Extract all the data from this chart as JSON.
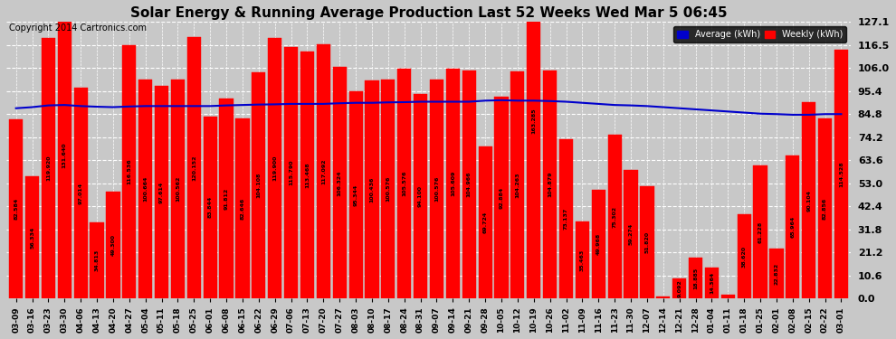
{
  "title": "Solar Energy & Running Average Production Last 52 Weeks Wed Mar 5 06:45",
  "copyright": "Copyright 2014 Cartronics.com",
  "bar_color": "#ff0000",
  "bar_edge_color": "#cc0000",
  "avg_line_color": "#0000cc",
  "background_color": "#c8c8c8",
  "plot_bg_color": "#c8c8c8",
  "ylim": [
    0,
    127.1
  ],
  "yticks": [
    0.0,
    10.6,
    21.2,
    31.8,
    42.4,
    53.0,
    63.6,
    74.2,
    84.8,
    95.4,
    106.0,
    116.5,
    127.1
  ],
  "legend_avg_color": "#0000cc",
  "legend_weekly_color": "#ff0000",
  "labels": [
    "03-09",
    "03-16",
    "03-23",
    "03-30",
    "04-06",
    "04-13",
    "04-20",
    "04-27",
    "05-04",
    "05-11",
    "05-18",
    "05-25",
    "06-01",
    "06-08",
    "06-15",
    "06-22",
    "06-29",
    "07-06",
    "07-13",
    "07-20",
    "07-27",
    "08-03",
    "08-10",
    "08-17",
    "08-24",
    "08-31",
    "09-07",
    "09-14",
    "09-21",
    "09-28",
    "10-05",
    "10-12",
    "10-19",
    "10-26",
    "11-02",
    "11-09",
    "11-16",
    "11-23",
    "11-30",
    "12-07",
    "12-14",
    "12-21",
    "12-28",
    "01-04",
    "01-11",
    "01-18",
    "01-25",
    "02-01",
    "02-08",
    "02-15",
    "02-22",
    "03-01"
  ],
  "weekly_values": [
    82.584,
    56.334,
    119.92,
    131.64,
    97.014,
    34.813,
    49.3,
    116.536,
    100.664,
    97.614,
    100.562,
    120.152,
    83.844,
    91.812,
    82.646,
    104.108,
    119.9,
    115.79,
    113.468,
    117.092,
    106.324,
    95.344,
    100.436,
    100.576,
    105.576,
    94.1,
    100.576,
    105.609,
    104.966,
    69.724,
    92.884,
    104.263,
    163.285,
    104.879,
    73.137,
    35.463,
    49.968,
    75.302,
    59.274,
    51.82,
    1.053,
    9.092,
    18.885,
    14.364,
    1.752,
    38.62,
    61.228,
    22.832,
    65.964,
    90.104,
    82.856,
    114.528
  ],
  "avg_values": [
    87.5,
    88.0,
    88.8,
    89.0,
    88.5,
    88.2,
    88.0,
    88.3,
    88.5,
    88.5,
    88.5,
    88.5,
    88.5,
    88.8,
    89.0,
    89.2,
    89.3,
    89.5,
    89.5,
    89.5,
    89.8,
    90.0,
    90.0,
    90.2,
    90.3,
    90.5,
    90.5,
    90.5,
    90.5,
    91.0,
    91.2,
    91.0,
    91.0,
    90.8,
    90.5,
    90.0,
    89.5,
    89.0,
    88.8,
    88.5,
    88.0,
    87.5,
    87.0,
    86.5,
    86.0,
    85.5,
    85.0,
    84.8,
    84.5,
    84.5,
    84.8,
    84.8
  ]
}
